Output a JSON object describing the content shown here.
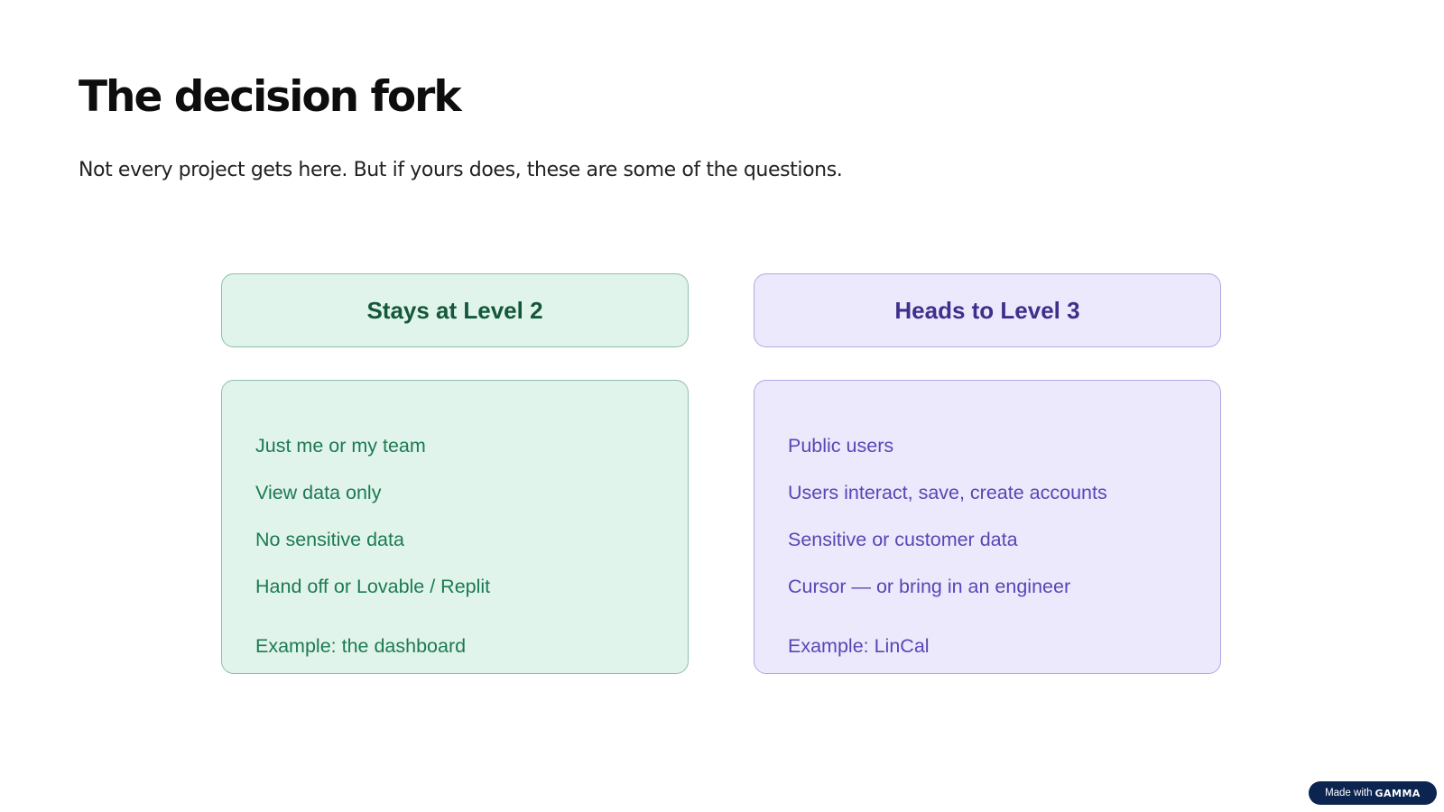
{
  "title": "The decision fork",
  "subtitle": "Not every project gets here. But if yours does, these are some of the questions.",
  "left": {
    "heading": "Stays at Level 2",
    "items": [
      "Just me or my team",
      "View data only",
      "No sensitive data",
      "Hand off or Lovable / Replit"
    ],
    "example": "Example: the dashboard",
    "colors": {
      "background": "#e0f4ec",
      "border": "#8fbfa9",
      "text": "#1d7a52"
    }
  },
  "right": {
    "heading": "Heads to Level 3",
    "items": [
      "Public users",
      "Users interact, save, create accounts",
      "Sensitive or customer data",
      "Cursor — or bring in an engineer"
    ],
    "example": "Example: LinCal",
    "colors": {
      "background": "#ece9fc",
      "border": "#b3a7e4",
      "text": "#5a45b5"
    }
  },
  "badge": {
    "prefix": "Made with",
    "brand": "GAMMA"
  }
}
